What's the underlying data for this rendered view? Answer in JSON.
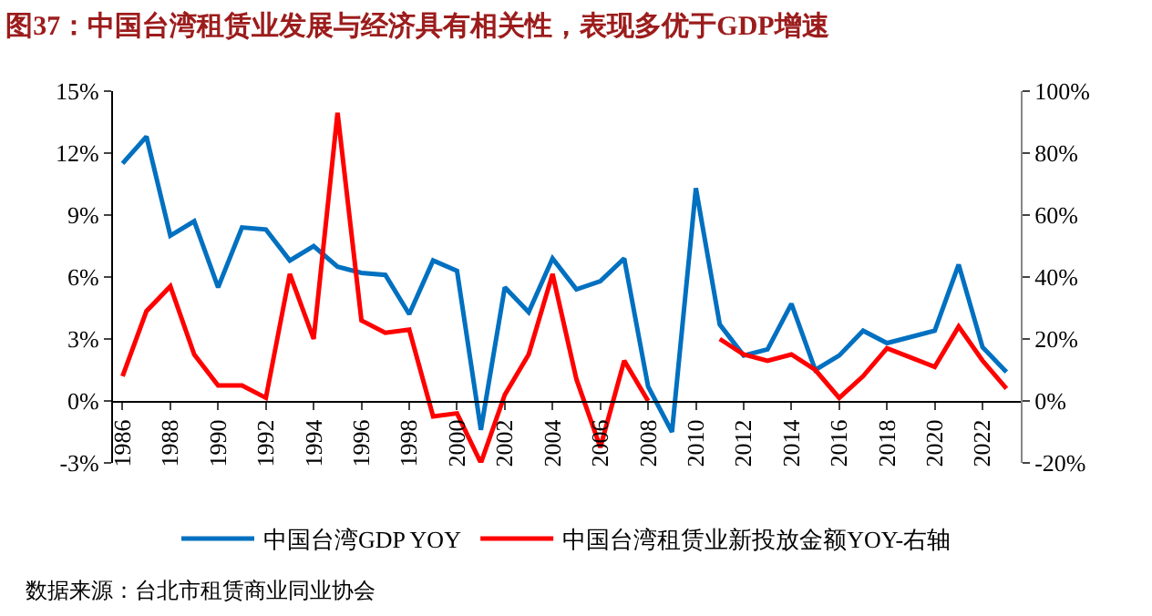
{
  "chart_data": {
    "type": "line",
    "title": "图37：中国台湾租赁业发展与经济具有相关性，表现多优于GDP增速",
    "x": [
      1986,
      1987,
      1988,
      1989,
      1990,
      1991,
      1992,
      1993,
      1994,
      1995,
      1996,
      1997,
      1998,
      1999,
      2000,
      2001,
      2002,
      2003,
      2004,
      2005,
      2006,
      2007,
      2008,
      2009,
      2010,
      2011,
      2012,
      2013,
      2014,
      2015,
      2016,
      2017,
      2018,
      2019,
      2020,
      2021,
      2022,
      2023
    ],
    "series": [
      {
        "name": "中国台湾GDP YOY",
        "color": "#0070c0",
        "values": [
          11.5,
          12.8,
          8.0,
          8.7,
          5.5,
          8.4,
          8.3,
          6.8,
          7.5,
          6.5,
          6.2,
          6.1,
          4.2,
          6.8,
          6.3,
          -1.4,
          5.5,
          4.3,
          6.9,
          5.4,
          5.8,
          6.9,
          0.7,
          -1.5,
          10.3,
          3.7,
          2.2,
          2.5,
          4.7,
          1.5,
          2.2,
          3.4,
          2.8,
          3.1,
          3.4,
          6.6,
          2.6,
          1.4
        ]
      },
      {
        "name": "中国台湾租赁业新投放金额YOY-右轴",
        "color": "#ff0000",
        "axis": "y2",
        "values": [
          8,
          29,
          37,
          15,
          5,
          5,
          1,
          41,
          20,
          93,
          26,
          22,
          23,
          -5,
          -4,
          -20,
          2,
          15,
          41,
          7,
          -15,
          13,
          0,
          null,
          null,
          20,
          15,
          13,
          15,
          10,
          1,
          8,
          17,
          14,
          11,
          24,
          13,
          4
        ]
      }
    ],
    "xlim": [
      1985.6,
      2023.6
    ],
    "xticks": [
      1986,
      1988,
      1990,
      1992,
      1994,
      1996,
      1998,
      2000,
      2002,
      2004,
      2006,
      2008,
      2010,
      2012,
      2014,
      2016,
      2018,
      2020,
      2022
    ],
    "ylim": [
      -3,
      15
    ],
    "yticks": [
      {
        "value": -3,
        "label": "-3%"
      },
      {
        "value": 0,
        "label": "0%"
      },
      {
        "value": 3,
        "label": "3%"
      },
      {
        "value": 6,
        "label": "6%"
      },
      {
        "value": 9,
        "label": "9%"
      },
      {
        "value": 12,
        "label": "12%"
      },
      {
        "value": 15,
        "label": "15%"
      }
    ],
    "y2lim": [
      -20,
      100
    ],
    "y2ticks": [
      {
        "value": -20,
        "label": "-20%"
      },
      {
        "value": 0,
        "label": "0%"
      },
      {
        "value": 20,
        "label": "20%"
      },
      {
        "value": 40,
        "label": "40%"
      },
      {
        "value": 60,
        "label": "60%"
      },
      {
        "value": 80,
        "label": "80%"
      },
      {
        "value": 100,
        "label": "100%"
      }
    ],
    "legend": "bottom",
    "annotations": [
      "数据来源：台北市租赁商业同业协会"
    ]
  }
}
